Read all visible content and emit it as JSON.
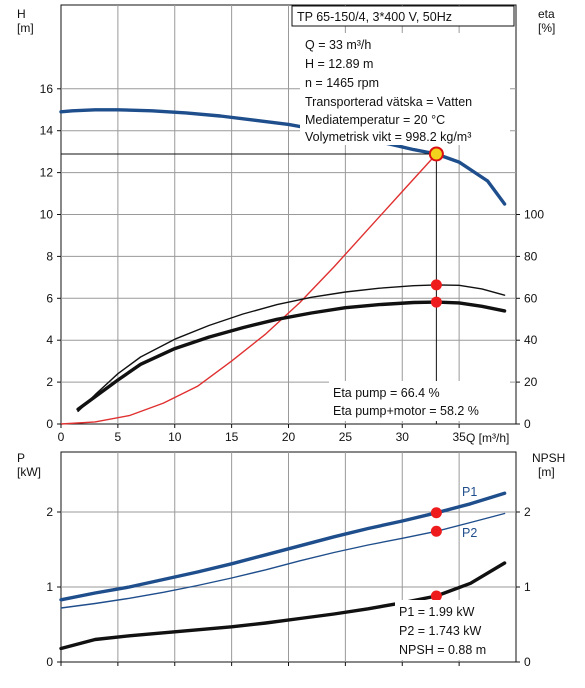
{
  "chart_data": [
    {
      "type": "line",
      "title": "TP 65-150/4, 3*400 V, 50Hz",
      "xlabel": "Q [m³/h]",
      "xlim": [
        0,
        40
      ],
      "xticks": [
        0,
        5,
        10,
        15,
        20,
        25,
        30,
        35
      ],
      "y_left": {
        "label_top": "H",
        "label_unit": "[m]",
        "lim": [
          0,
          20
        ],
        "ticks": [
          0,
          2,
          4,
          6,
          8,
          10,
          12,
          14,
          16
        ]
      },
      "y_right": {
        "label_top": "eta",
        "label_unit": "[%]",
        "lim": [
          0,
          200
        ],
        "ticks": [
          0,
          20,
          40,
          60,
          80,
          100
        ]
      },
      "grid": true,
      "series": [
        {
          "axis": "left",
          "color": "#1f4e8c",
          "style": "thick",
          "x": [
            0,
            1,
            3,
            5,
            8,
            11,
            14,
            17,
            20,
            23,
            26,
            29,
            31,
            33,
            35,
            37.5,
            39
          ],
          "y": [
            14.9,
            14.95,
            15.0,
            15.0,
            14.95,
            14.85,
            14.7,
            14.5,
            14.3,
            14.0,
            13.7,
            13.35,
            13.1,
            12.89,
            12.5,
            11.6,
            10.5
          ]
        },
        {
          "axis": "left",
          "color": "#e03030",
          "style": "thin",
          "x": [
            0,
            3,
            6,
            9,
            12,
            15,
            18,
            21,
            24,
            27,
            30,
            33
          ],
          "y": [
            0,
            0.1,
            0.4,
            1.0,
            1.8,
            3.0,
            4.3,
            5.8,
            7.5,
            9.3,
            11.1,
            12.89
          ]
        },
        {
          "axis": "right",
          "color": "#111111",
          "style": "thin",
          "x": [
            1.5,
            3,
            5,
            7,
            10,
            13,
            16,
            19,
            22,
            25,
            28,
            31,
            33,
            35,
            37,
            39
          ],
          "y": [
            6,
            14,
            24,
            32,
            40.5,
            47,
            52.5,
            57,
            60.5,
            63,
            64.8,
            66,
            66.4,
            66.2,
            64.5,
            61.5
          ]
        },
        {
          "axis": "right",
          "color": "#111111",
          "style": "thick",
          "x": [
            1.5,
            3,
            5,
            7,
            10,
            13,
            16,
            19,
            22,
            25,
            28,
            31,
            33,
            35,
            37,
            39
          ],
          "y": [
            7,
            13,
            21,
            28.5,
            36,
            41.5,
            46,
            50,
            53,
            55.5,
            57,
            58,
            58.2,
            57.8,
            56.2,
            54
          ]
        }
      ],
      "operating_point": {
        "Q": 33,
        "H": 12.89,
        "eta_pump": 66.4,
        "eta_pump_motor": 58.2
      },
      "info_lines": [
        "Q = 33 m³/h",
        "H = 12.89 m",
        "n = 1465 rpm",
        "Transporterad vätska = Vatten",
        "Mediatemperatur = 20 °C",
        "Volymetrisk vikt = 998.2 kg/m³"
      ],
      "eta_lines": [
        "Eta pump = 66.4 %",
        "Eta pump+motor = 58.2 %"
      ]
    },
    {
      "type": "line",
      "xlim": [
        0,
        40
      ],
      "xticks": [
        0,
        5,
        10,
        15,
        20,
        25,
        30,
        35
      ],
      "y_left": {
        "label_top": "P",
        "label_unit": "[kW]",
        "lim": [
          0,
          2.8
        ],
        "ticks": [
          0,
          1,
          2
        ]
      },
      "y_right": {
        "label_top": "NPSH",
        "label_unit": "[m]",
        "lim": [
          0,
          2.8
        ],
        "ticks": [
          0,
          1,
          2
        ]
      },
      "grid": true,
      "series": [
        {
          "name": "P1",
          "axis": "left",
          "color": "#1f4e8c",
          "style": "thick",
          "x": [
            0,
            3,
            6,
            9,
            12,
            15,
            18,
            21,
            24,
            27,
            30,
            33,
            36,
            39
          ],
          "y": [
            0.83,
            0.92,
            1.0,
            1.1,
            1.2,
            1.31,
            1.43,
            1.55,
            1.67,
            1.78,
            1.88,
            1.99,
            2.11,
            2.25
          ]
        },
        {
          "name": "P2",
          "axis": "left",
          "color": "#1f4e8c",
          "style": "thin",
          "x": [
            0,
            3,
            6,
            9,
            12,
            15,
            18,
            21,
            24,
            27,
            30,
            33,
            36,
            39
          ],
          "y": [
            0.72,
            0.78,
            0.85,
            0.93,
            1.02,
            1.12,
            1.23,
            1.35,
            1.46,
            1.56,
            1.65,
            1.743,
            1.86,
            1.98
          ]
        },
        {
          "axis": "right",
          "color": "#111111",
          "style": "thick",
          "x": [
            0,
            3,
            6,
            9,
            12,
            15,
            18,
            21,
            24,
            27,
            30,
            33,
            36,
            39
          ],
          "y": [
            0.18,
            0.3,
            0.35,
            0.39,
            0.43,
            0.47,
            0.52,
            0.58,
            0.64,
            0.71,
            0.79,
            0.88,
            1.05,
            1.32
          ]
        }
      ],
      "operating_point": {
        "Q": 33,
        "P1": 1.99,
        "P2": 1.743,
        "NPSH": 0.88
      },
      "info_lines": [
        "P1 = 1.99 kW",
        "P2 = 1.743 kW",
        "NPSH = 0.88 m"
      ]
    }
  ]
}
